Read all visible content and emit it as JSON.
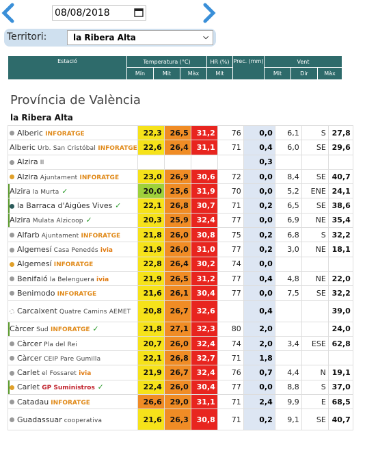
{
  "date": "08/08/2018",
  "territori": {
    "label": "Territori:",
    "value": "la Ribera Alta"
  },
  "headers": {
    "estacio": "Estació",
    "temp": "Temperatura (°C)",
    "hr": "HR (%)",
    "prec": "Prec. (mm)",
    "vent": "Vent",
    "min": "Mín",
    "mit": "Mit",
    "max": "Màx",
    "hrmit": "Mit",
    "vmit": "Mit",
    "vdir": "Dir",
    "vmax": "Màx"
  },
  "provincia": "Província de València",
  "region": "la Ribera Alta",
  "colors": {
    "header": "#2e6b6b",
    "yellow": "#f6e21a",
    "orange": "#f08c25",
    "red": "#e8251f",
    "green": "#9fd13a",
    "prec": "#dde6f3"
  },
  "rows": [
    {
      "name": "Alberic",
      "sub": "",
      "brand": "INFORATGE",
      "ok": false,
      "dot": "#999",
      "min": "22,3",
      "mit": "26,5",
      "max": "31,2",
      "hr": "76",
      "prec": "0,0",
      "vmit": "6,1",
      "dir": "S",
      "vmax": "27,8",
      "minc": "y",
      "mitc": "o",
      "maxc": "r"
    },
    {
      "name": "Alberic",
      "sub": "Urb. San Cristóbal",
      "brand": "INFORATGE",
      "ok": false,
      "dot": "",
      "min": "22,6",
      "mit": "26,4",
      "max": "31,1",
      "hr": "71",
      "prec": "0,4",
      "vmit": "6,0",
      "dir": "SE",
      "vmax": "29,6",
      "minc": "y",
      "mitc": "o",
      "maxc": "r"
    },
    {
      "name": "Alzira",
      "sub": "II",
      "brand": "",
      "ok": false,
      "dot": "#999",
      "min": "",
      "mit": "",
      "max": "",
      "hr": "",
      "prec": "0,3",
      "vmit": "",
      "dir": "",
      "vmax": "",
      "minc": "",
      "mitc": "",
      "maxc": ""
    },
    {
      "name": "Alzira",
      "sub": "Ajuntament",
      "brand": "INFORATGE",
      "ok": false,
      "dot": "#e0a02a",
      "min": "23,0",
      "mit": "26,9",
      "max": "30,6",
      "hr": "72",
      "prec": "0,0",
      "vmit": "8,4",
      "dir": "SE",
      "vmax": "40,7",
      "minc": "y",
      "mitc": "o",
      "maxc": "r"
    },
    {
      "name": "Alzira",
      "sub": "la Murta",
      "brand": "",
      "ok": true,
      "dot": "",
      "min": "20,0",
      "mit": "25,6",
      "max": "31,9",
      "hr": "70",
      "prec": "0,0",
      "vmit": "5,2",
      "dir": "ENE",
      "vmax": "24,1",
      "minc": "g",
      "mitc": "o",
      "maxc": "r"
    },
    {
      "name": "la Barraca d'Aigües Vives",
      "sub": "",
      "brand": "",
      "ok": true,
      "dot": "#2a5a5a",
      "min": "22,1",
      "mit": "26,8",
      "max": "30,7",
      "hr": "71",
      "prec": "0,2",
      "vmit": "6,5",
      "dir": "SE",
      "vmax": "38,6",
      "minc": "y",
      "mitc": "o",
      "maxc": "r"
    },
    {
      "name": "Alzira",
      "sub": "Mulata Alzicoop",
      "brand": "",
      "ok": true,
      "dot": "",
      "min": "20,3",
      "mit": "25,9",
      "max": "32,4",
      "hr": "77",
      "prec": "0,0",
      "vmit": "6,9",
      "dir": "NE",
      "vmax": "35,4",
      "minc": "y",
      "mitc": "o",
      "maxc": "r"
    },
    {
      "name": "Alfarb",
      "sub": "Ajuntament",
      "brand": "INFORATGE",
      "ok": false,
      "dot": "#999",
      "min": "21,8",
      "mit": "26,0",
      "max": "30,8",
      "hr": "75",
      "prec": "0,2",
      "vmit": "6,8",
      "dir": "S",
      "vmax": "32,2",
      "minc": "y",
      "mitc": "o",
      "maxc": "r"
    },
    {
      "name": "Algemesí",
      "sub": "Casa Penedés",
      "brand": "ivia",
      "ok": false,
      "dot": "#999",
      "min": "21,9",
      "mit": "26,0",
      "max": "31,0",
      "hr": "77",
      "prec": "0,2",
      "vmit": "3,0",
      "dir": "NE",
      "vmax": "18,1",
      "minc": "y",
      "mitc": "o",
      "maxc": "r"
    },
    {
      "name": "Algemesí",
      "sub": "",
      "brand": "INFORATGE",
      "ok": false,
      "dot": "#e0a02a",
      "min": "22,8",
      "mit": "26,4",
      "max": "30,2",
      "hr": "74",
      "prec": "0,0",
      "vmit": "",
      "dir": "",
      "vmax": "",
      "minc": "y",
      "mitc": "o",
      "maxc": "r"
    },
    {
      "name": "Benifaió",
      "sub": "la Belenguera",
      "brand": "ivia",
      "ok": false,
      "dot": "#999",
      "min": "21,9",
      "mit": "26,5",
      "max": "31,2",
      "hr": "77",
      "prec": "0,4",
      "vmit": "4,8",
      "dir": "NE",
      "vmax": "22,0",
      "minc": "y",
      "mitc": "o",
      "maxc": "r"
    },
    {
      "name": "Benimodo",
      "sub": "",
      "brand": "INFORATGE",
      "ok": false,
      "dot": "#999",
      "min": "21,6",
      "mit": "26,1",
      "max": "30,4",
      "hr": "77",
      "prec": "0,0",
      "vmit": "7,5",
      "dir": "SE",
      "vmax": "32,2",
      "minc": "y",
      "mitc": "o",
      "maxc": "r"
    },
    {
      "name": "Carcaixent",
      "sub": "Quatre Camins AEMET",
      "brand": "",
      "ok": false,
      "dot": "#ddd",
      "min": "20,8",
      "mit": "26,7",
      "max": "32,6",
      "hr": "",
      "prec": "0,4",
      "vmit": "",
      "dir": "",
      "vmax": "39,0",
      "minc": "y",
      "mitc": "o",
      "maxc": "r",
      "tall": true
    },
    {
      "name": "Càrcer",
      "sub": "Sud",
      "brand": "INFORATGE",
      "ok": true,
      "dot": "",
      "min": "21,8",
      "mit": "27,1",
      "max": "32,3",
      "hr": "80",
      "prec": "2,0",
      "vmit": "",
      "dir": "",
      "vmax": "24,0",
      "minc": "y",
      "mitc": "o",
      "maxc": "r"
    },
    {
      "name": "Càrcer",
      "sub": "Pla del Rei",
      "brand": "",
      "ok": false,
      "dot": "#999",
      "min": "20,7",
      "mit": "26,0",
      "max": "32,4",
      "hr": "74",
      "prec": "2,0",
      "vmit": "3,4",
      "dir": "ESE",
      "vmax": "62,8",
      "minc": "y",
      "mitc": "o",
      "maxc": "r"
    },
    {
      "name": "Càrcer",
      "sub": "CEIP Pare Gumilla",
      "brand": "",
      "ok": false,
      "dot": "#999",
      "min": "22,1",
      "mit": "26,8",
      "max": "32,7",
      "hr": "71",
      "prec": "1,8",
      "vmit": "",
      "dir": "",
      "vmax": "",
      "minc": "y",
      "mitc": "o",
      "maxc": "r"
    },
    {
      "name": "Carlet",
      "sub": "el Fossaret",
      "brand": "ivia",
      "ok": false,
      "dot": "#999",
      "min": "21,9",
      "mit": "26,7",
      "max": "32,4",
      "hr": "76",
      "prec": "0,7",
      "vmit": "4,4",
      "dir": "N",
      "vmax": "19,1",
      "minc": "y",
      "mitc": "o",
      "maxc": "r"
    },
    {
      "name": "Carlet",
      "sub": "",
      "brand": "GP Suministros",
      "ok": true,
      "dot": "#e0a02a",
      "min": "22,4",
      "mit": "26,0",
      "max": "30,4",
      "hr": "77",
      "prec": "0,0",
      "vmit": "8,8",
      "dir": "S",
      "vmax": "37,0",
      "minc": "y",
      "mitc": "o",
      "maxc": "r"
    },
    {
      "name": "Catadau",
      "sub": "",
      "brand": "INFORATGE",
      "ok": false,
      "dot": "#999",
      "min": "26,6",
      "mit": "29,0",
      "max": "31,1",
      "hr": "71",
      "prec": "2,4",
      "vmit": "9,9",
      "dir": "E",
      "vmax": "68,5",
      "minc": "o",
      "mitc": "o",
      "maxc": "r"
    },
    {
      "name": "Guadassuar",
      "sub": "cooperativa",
      "brand": "",
      "ok": false,
      "dot": "#999",
      "min": "21,6",
      "mit": "26,3",
      "max": "30,8",
      "hr": "71",
      "prec": "0,2",
      "vmit": "9,1",
      "dir": "SE",
      "vmax": "40,7",
      "minc": "y",
      "mitc": "o",
      "maxc": "r",
      "tall": true
    }
  ]
}
